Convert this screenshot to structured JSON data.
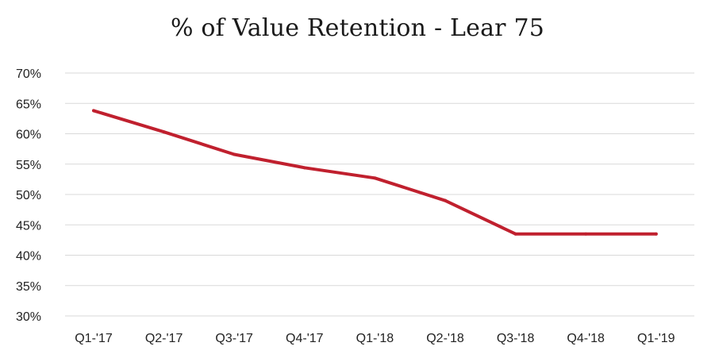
{
  "chart_data": {
    "type": "line",
    "title": "% of Value Retention - Lear 75",
    "xlabel": "",
    "ylabel": "",
    "categories": [
      "Q1-'17",
      "Q2-'17",
      "Q3-'17",
      "Q4-'17",
      "Q1-'18",
      "Q2-'18",
      "Q3-'18",
      "Q4-'18",
      "Q1-'19"
    ],
    "series": [
      {
        "values": [
          63.8,
          60.3,
          56.6,
          54.4,
          52.7,
          49.0,
          43.5,
          43.5,
          43.5
        ]
      }
    ],
    "ylim": [
      30,
      70
    ],
    "yticks": [
      30,
      35,
      40,
      45,
      50,
      55,
      60,
      65,
      70
    ],
    "ytick_labels": [
      "30%",
      "35%",
      "40%",
      "45%",
      "50%",
      "55%",
      "60%",
      "65%",
      "70%"
    ],
    "grid": true,
    "legend": "none",
    "colors": {
      "line": "#c0202e",
      "grid": "#d9d9d9"
    }
  }
}
